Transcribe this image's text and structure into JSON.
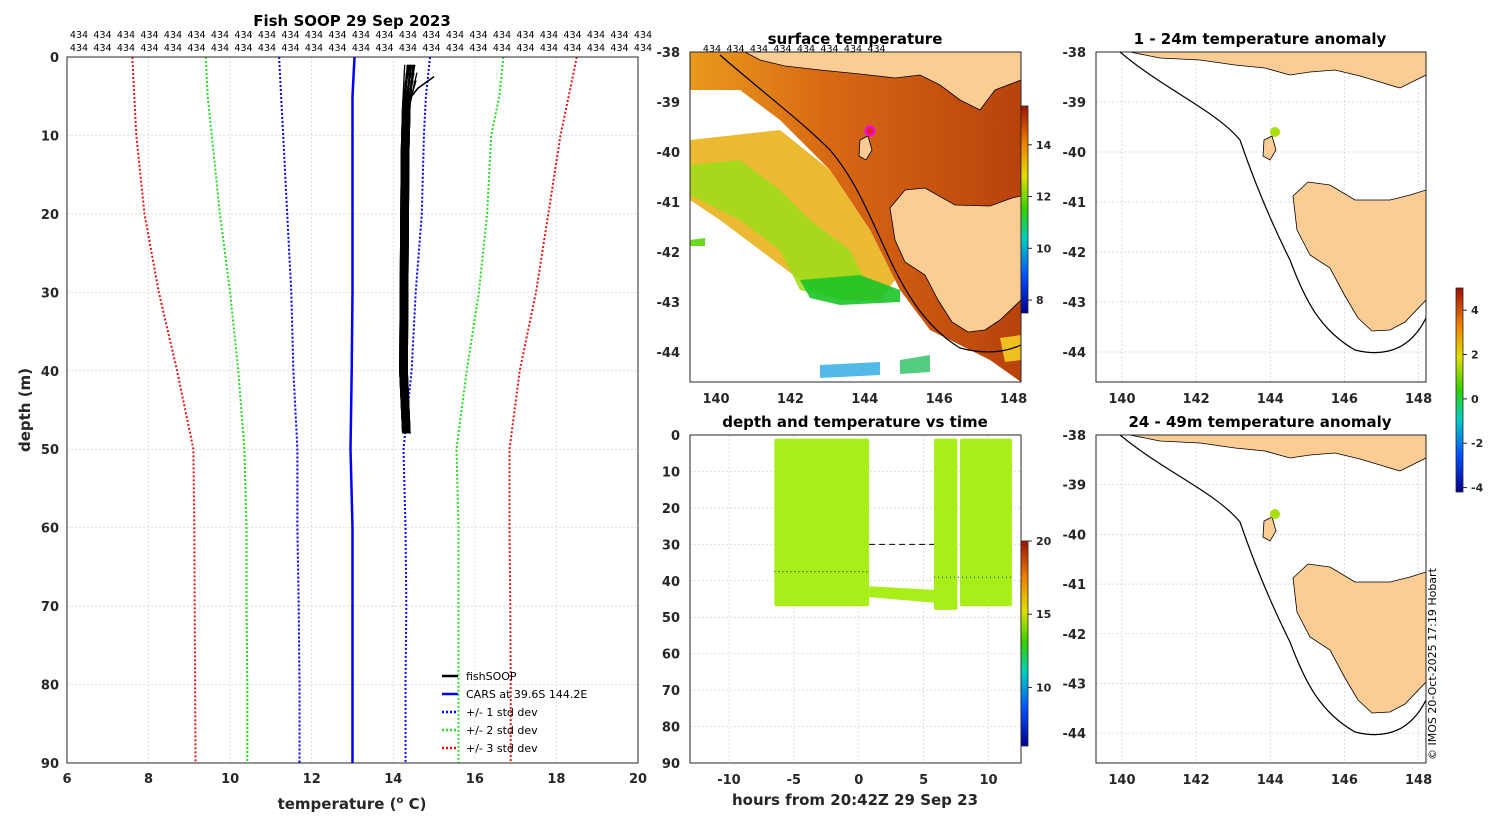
{
  "figure": {
    "copyright": "© IMOS 20-Oct-2025 17:19 Hobart"
  },
  "profile": {
    "title": "Fish SOOP 29 Sep 2023",
    "xlabel": "temperature (",
    "xlabel_sup": "o",
    "xlabel_end": " C)",
    "ylabel": "depth (m)",
    "id_label": "434",
    "id_rows": 2,
    "id_cols": 25,
    "legend": [
      "fishSOOP",
      "CARS at 39.6S 144.2E",
      "+/- 1 std dev",
      "+/- 2 std dev",
      "+/- 3 std dev"
    ]
  },
  "sst": {
    "title": "surface temperature",
    "id_label": "434",
    "id_count": 8,
    "colorbar_ticks": [
      "8",
      "10",
      "12",
      "14"
    ]
  },
  "timeplot": {
    "title": "depth and temperature vs time",
    "xlabel": "hours from 20:42Z 29 Sep 23",
    "colorbar_ticks": [
      "10",
      "15",
      "20"
    ]
  },
  "anom1": {
    "title": "1 - 24m temperature anomaly"
  },
  "anom2": {
    "title": "24 - 49m temperature anomaly"
  },
  "anom_colorbar": {
    "ticks": [
      "-4",
      "-2",
      "0",
      "2",
      "4"
    ]
  },
  "chart_data": [
    {
      "type": "line",
      "panel": "profile",
      "title": "Fish SOOP 29 Sep 2023",
      "xlabel": "temperature (o C)",
      "ylabel": "depth (m)",
      "xlim": [
        6,
        20
      ],
      "ylim": [
        90,
        0
      ],
      "xticks": [
        6,
        8,
        10,
        12,
        14,
        16,
        18,
        20
      ],
      "yticks": [
        0,
        10,
        20,
        30,
        40,
        50,
        60,
        70,
        80,
        90
      ],
      "depths": [
        0,
        5,
        10,
        20,
        30,
        40,
        50,
        60,
        70,
        80,
        90
      ],
      "series": [
        {
          "name": "CARS at 39.6S 144.2E",
          "color": "#0000ff",
          "style": "solid",
          "values": [
            13.05,
            13.0,
            13.0,
            13.0,
            13.0,
            12.98,
            12.95,
            13.0,
            13.0,
            13.0,
            13.0
          ]
        },
        {
          "name": "+/- 1 std dev (low)",
          "color": "#0000ff",
          "style": "dotted",
          "values": [
            11.2,
            11.25,
            11.3,
            11.4,
            11.5,
            11.55,
            11.65,
            11.65,
            11.68,
            11.7,
            11.7
          ]
        },
        {
          "name": "+/- 1 std dev (high)",
          "color": "#0000ff",
          "style": "dotted",
          "values": [
            14.9,
            14.8,
            14.75,
            14.7,
            14.55,
            14.45,
            14.25,
            14.3,
            14.32,
            14.3,
            14.3
          ]
        },
        {
          "name": "+/- 2 std dev (low)",
          "color": "#22dd22",
          "style": "dotted",
          "values": [
            9.4,
            9.45,
            9.55,
            9.75,
            10.0,
            10.2,
            10.35,
            10.4,
            10.4,
            10.42,
            10.42
          ]
        },
        {
          "name": "+/- 2 std dev (high)",
          "color": "#22dd22",
          "style": "dotted",
          "values": [
            16.7,
            16.6,
            16.4,
            16.3,
            16.1,
            15.8,
            15.55,
            15.6,
            15.6,
            15.6,
            15.6
          ]
        },
        {
          "name": "+/- 3 std dev (low)",
          "color": "#ee1111",
          "style": "dotted",
          "values": [
            7.6,
            7.65,
            7.7,
            7.9,
            8.25,
            8.7,
            9.1,
            9.12,
            9.13,
            9.14,
            9.15
          ]
        },
        {
          "name": "+/- 3 std dev (high)",
          "color": "#ee1111",
          "style": "dotted",
          "values": [
            18.5,
            18.3,
            18.1,
            17.8,
            17.5,
            17.1,
            16.85,
            16.85,
            16.87,
            16.88,
            16.88
          ]
        },
        {
          "name": "fishSOOP",
          "color": "#000000",
          "style": "solid",
          "depth_range": [
            1,
            49
          ],
          "temp_range": [
            14.1,
            15.0
          ]
        }
      ]
    },
    {
      "type": "heatmap",
      "panel": "sst",
      "title": "surface temperature",
      "xlim": [
        139.3,
        148.2
      ],
      "ylim": [
        -44.6,
        -38
      ],
      "xticks": [
        140,
        142,
        144,
        146,
        148
      ],
      "yticks": [
        -38,
        -39,
        -40,
        -41,
        -42,
        -43,
        -44
      ],
      "colorbar_range": [
        7.5,
        15.5
      ],
      "marker": {
        "lon": 144.2,
        "lat": -39.6
      }
    },
    {
      "type": "scatter",
      "panel": "time",
      "title": "depth and temperature vs time",
      "xlabel": "hours from 20:42Z 29 Sep 23",
      "xlim": [
        -13,
        12.5
      ],
      "ylim": [
        90,
        0
      ],
      "xticks": [
        -10,
        -5,
        0,
        5,
        10
      ],
      "yticks": [
        0,
        10,
        20,
        30,
        40,
        50,
        60,
        70,
        80,
        90
      ],
      "colorbar_range": [
        6,
        20
      ],
      "blocks": [
        {
          "t_start": -6.5,
          "t_end": 0.8,
          "depth_max": 47,
          "temp": 14.5
        },
        {
          "t_start": 5.8,
          "t_end": 7.6,
          "depth_max": 48,
          "temp": 14.5
        },
        {
          "t_start": 7.8,
          "t_end": 11.8,
          "depth_max": 47,
          "temp": 14.5
        }
      ]
    },
    {
      "type": "heatmap",
      "panel": "anom1",
      "title": "1 - 24m temperature anomaly",
      "xlim": [
        139.3,
        148.2
      ],
      "ylim": [
        -44.6,
        -38
      ],
      "xticks": [
        140,
        142,
        144,
        146,
        148
      ],
      "yticks": [
        -38,
        -39,
        -40,
        -41,
        -42,
        -43,
        -44
      ],
      "colorbar_range": [
        -4.2,
        5
      ],
      "marker": {
        "lon": 144.2,
        "lat": -39.6,
        "anomaly": 1.3
      }
    },
    {
      "type": "heatmap",
      "panel": "anom2",
      "title": "24 - 49m temperature anomaly",
      "xlim": [
        139.3,
        148.2
      ],
      "ylim": [
        -44.6,
        -38
      ],
      "xticks": [
        140,
        142,
        144,
        146,
        148
      ],
      "yticks": [
        -38,
        -39,
        -40,
        -41,
        -42,
        -43,
        -44
      ],
      "colorbar_range": [
        -4.2,
        5
      ],
      "marker": {
        "lon": 144.2,
        "lat": -39.6,
        "anomaly": 1.3
      }
    }
  ]
}
